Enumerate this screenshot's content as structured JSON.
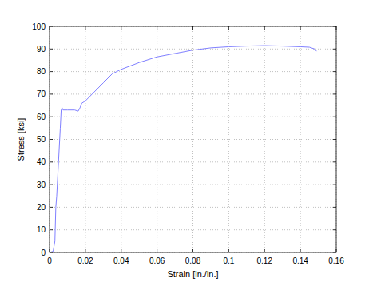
{
  "chart_data": {
    "type": "line",
    "x_label": "Strain [in./in.]",
    "y_label": "Stress [ksi]",
    "x": [
      0,
      0.002,
      0.003,
      0.0035,
      0.004,
      0.005,
      0.006,
      0.0065,
      0.007,
      0.0075,
      0.01,
      0.014,
      0.016,
      0.017,
      0.018,
      0.02,
      0.025,
      0.03,
      0.035,
      0.04,
      0.05,
      0.06,
      0.07,
      0.08,
      0.09,
      0.1,
      0.11,
      0.12,
      0.13,
      0.14,
      0.145,
      0.148,
      0.149
    ],
    "values": [
      0,
      0.5,
      5,
      20,
      25,
      40,
      55,
      63,
      64,
      63,
      63,
      63,
      62.5,
      64,
      66,
      67,
      71,
      75,
      79,
      81,
      84,
      86.5,
      88,
      89.5,
      90.5,
      91,
      91.3,
      91.5,
      91.3,
      91,
      90.8,
      90,
      89
    ],
    "color": "#8080ff",
    "xlim": [
      0,
      0.16
    ],
    "xticks": [
      0,
      0.02,
      0.04,
      0.06,
      0.08,
      0.1,
      0.12,
      0.14,
      0.16
    ],
    "ylim": [
      0,
      100
    ],
    "yticks": [
      0,
      10,
      20,
      30,
      40,
      50,
      60,
      70,
      80,
      90,
      100
    ],
    "grid": true
  }
}
